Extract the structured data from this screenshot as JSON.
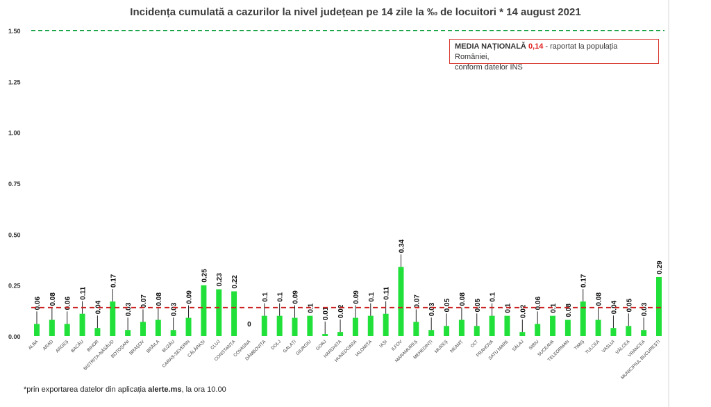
{
  "chart_data": {
    "type": "bar",
    "title": "Incidența cumulată a cazurilor la nivel județean pe 14 zile la ‰ de locuitori *  14 august 2021",
    "categories": [
      "ALBA",
      "ARAD",
      "ARGEȘ",
      "BACĂU",
      "BIHOR",
      "BISTRIȚA-NĂSĂUD",
      "BOTOȘANI",
      "BRAȘOV",
      "BRĂILA",
      "BUZĂU",
      "CARAȘ-SEVERIN",
      "CĂLĂRAȘI",
      "CLUJ",
      "CONSTANȚA",
      "COVASNA",
      "DÂMBOVIȚA",
      "DOLJ",
      "GALAȚI",
      "GIURGIU",
      "GORJ",
      "HARGHITA",
      "HUNEDOARA",
      "IALOMIȚA",
      "IAȘI",
      "ILFOV",
      "MARAMUREȘ",
      "MEHEDINȚI",
      "MUREȘ",
      "NEAMȚ",
      "OLT",
      "PRAHOVA",
      "SATU MARE",
      "SĂLAJ",
      "SIBIU",
      "SUCEAVA",
      "TELEORMAN",
      "TIMIȘ",
      "TULCEA",
      "VASLUI",
      "VÂLCEA",
      "VRANCEA",
      "MUNICIPIUL BUCUREȘTI"
    ],
    "values": [
      0.06,
      0.08,
      0.06,
      0.11,
      0.04,
      0.17,
      0.03,
      0.07,
      0.08,
      0.03,
      0.09,
      0.25,
      0.23,
      0.22,
      0,
      0.1,
      0.1,
      0.09,
      0.1,
      0.01,
      0.02,
      0.09,
      0.1,
      0.11,
      0.34,
      0.07,
      0.03,
      0.05,
      0.08,
      0.05,
      0.1,
      0.1,
      0.02,
      0.06,
      0.1,
      0.08,
      0.17,
      0.08,
      0.04,
      0.05,
      0.03,
      0.29
    ],
    "data_labels": [
      "0.06",
      "0.08",
      "0.06",
      "0.11",
      "0.04",
      "0.17",
      "0.03",
      "0.07",
      "0.08",
      "0.03",
      "0.09",
      "0.25",
      "0.23",
      "0.22",
      "0",
      "0.1",
      "0.1",
      "0.09",
      "0.1",
      "0.01",
      "0.02",
      "0.09",
      "0.1",
      "0.11",
      "0.34",
      "0.07",
      "0.03",
      "0.05",
      "0.08",
      "0.05",
      "0.1",
      "0.1",
      "0.02",
      "0.06",
      "0.1",
      "0.08",
      "0.17",
      "0.08",
      "0.04",
      "0.05",
      "0.03",
      "0.29"
    ],
    "label_on_bar": [
      false,
      false,
      false,
      false,
      false,
      false,
      false,
      false,
      false,
      false,
      false,
      true,
      true,
      true,
      false,
      false,
      false,
      false,
      true,
      false,
      false,
      false,
      false,
      false,
      false,
      false,
      false,
      false,
      false,
      false,
      false,
      true,
      false,
      false,
      true,
      true,
      false,
      false,
      false,
      false,
      false,
      true
    ],
    "yticks": [
      "0.00",
      "0.25",
      "0.50",
      "0.75",
      "1.00",
      "1.25",
      "1.50"
    ],
    "ylim": [
      0,
      1.5
    ],
    "reference_lines": [
      {
        "value": 1.5,
        "style": "dashed",
        "color": "#1fa64a"
      },
      {
        "value": 0.14,
        "style": "dashed",
        "color": "#cc1f1f"
      }
    ],
    "bar_color": "#22e03a",
    "grid": false,
    "legend_position": "top-right"
  },
  "legend": {
    "label": "MEDIA NAȚIONALĂ",
    "value": "0,14",
    "rest_line1": " - raportat la populația României,",
    "line2": "conform datelor INS"
  },
  "footnote": {
    "prefix": "*prin exportarea datelor din aplicația ",
    "app": "alerte.ms",
    "suffix": ", la ora 10.00"
  }
}
